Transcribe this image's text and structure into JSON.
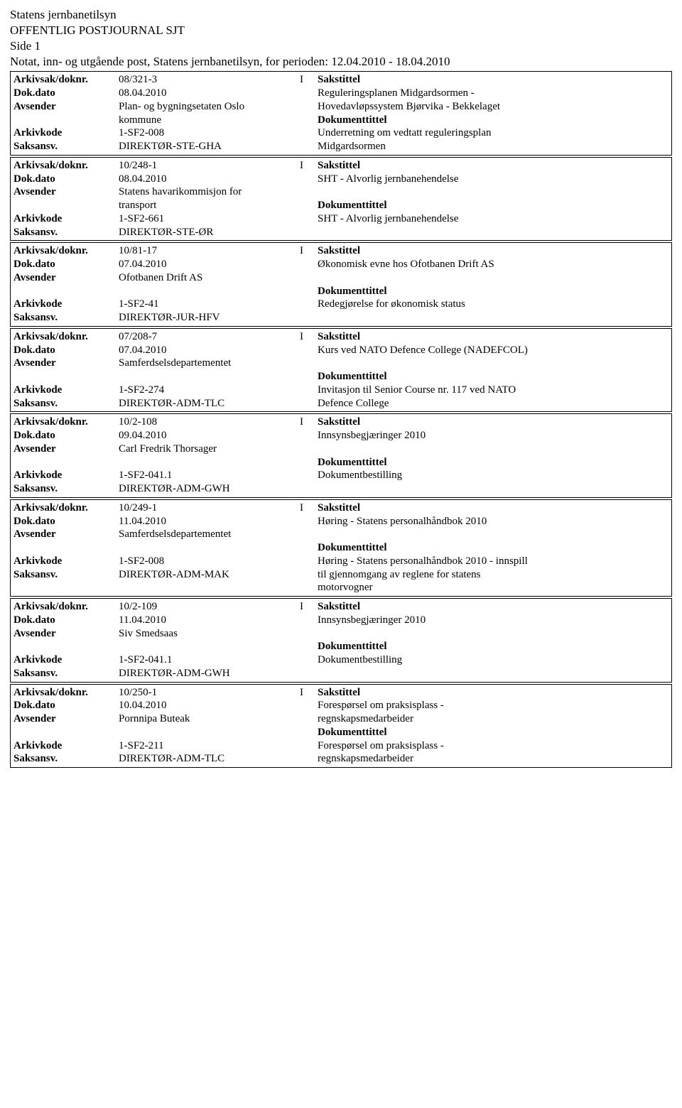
{
  "header": {
    "org": "Statens jernbanetilsyn",
    "journal": "OFFENTLIG POSTJOURNAL SJT",
    "side": "Side 1",
    "period": "Notat, inn- og utgående post, Statens jernbanetilsyn, for perioden: 12.04.2010 - 18.04.2010"
  },
  "labels": {
    "arkivsak": "Arkivsak/doknr.",
    "dokdato": "Dok.dato",
    "avsender": "Avsender",
    "arkivkode": "Arkivkode",
    "saksansv": "Saksansv.",
    "sakstittel": "Sakstittel",
    "dokumenttittel": "Dokumenttittel"
  },
  "entries": [
    {
      "arkivsak": "08/321-3",
      "itype": "I",
      "dokdato": "08.04.2010",
      "avsender": "Plan- og bygningsetaten Oslo kommune",
      "arkivkode": "1-SF2-008",
      "saksansv": "DIREKTØR-STE-GHA",
      "sakstittel": "Reguleringsplanen Midgardsormen - Hovedavløpssystem Bjørvika - Bekkelaget",
      "doktittel": "Underretning om vedtatt reguleringsplan Midgardsormen"
    },
    {
      "arkivsak": "10/248-1",
      "itype": "I",
      "dokdato": "08.04.2010",
      "avsender": "Statens havarikommisjon for transport",
      "arkivkode": "1-SF2-661",
      "saksansv": "DIREKTØR-STE-ØR",
      "sakstittel": "SHT - Alvorlig jernbanehendelse",
      "doktittel": "SHT - Alvorlig jernbanehendelse"
    },
    {
      "arkivsak": "10/81-17",
      "itype": "I",
      "dokdato": "07.04.2010",
      "avsender": "Ofotbanen Drift AS",
      "arkivkode": "1-SF2-41",
      "saksansv": "DIREKTØR-JUR-HFV",
      "sakstittel": "Økonomisk evne hos Ofotbanen Drift AS",
      "doktittel": "Redegjørelse for økonomisk status"
    },
    {
      "arkivsak": "07/208-7",
      "itype": "I",
      "dokdato": "07.04.2010",
      "avsender": "Samferdselsdepartementet",
      "arkivkode": "1-SF2-274",
      "saksansv": "DIREKTØR-ADM-TLC",
      "sakstittel": "Kurs ved NATO Defence College (NADEFCOL)",
      "doktittel": "Invitasjon til Senior Course nr. 117 ved NATO Defence College"
    },
    {
      "arkivsak": "10/2-108",
      "itype": "I",
      "dokdato": "09.04.2010",
      "avsender": "Carl Fredrik Thorsager",
      "arkivkode": "1-SF2-041.1",
      "saksansv": "DIREKTØR-ADM-GWH",
      "sakstittel": "Innsynsbegjæringer 2010",
      "doktittel": "Dokumentbestilling"
    },
    {
      "arkivsak": "10/249-1",
      "itype": "I",
      "dokdato": "11.04.2010",
      "avsender": "Samferdselsdepartementet",
      "arkivkode": "1-SF2-008",
      "saksansv": "DIREKTØR-ADM-MAK",
      "sakstittel": "Høring - Statens personalhåndbok 2010",
      "doktittel": "Høring - Statens personalhåndbok 2010 - innspill til gjennomgang av reglene for statens motorvogner"
    },
    {
      "arkivsak": "10/2-109",
      "itype": "I",
      "dokdato": "11.04.2010",
      "avsender": "Siv Smedsaas",
      "arkivkode": "1-SF2-041.1",
      "saksansv": "DIREKTØR-ADM-GWH",
      "sakstittel": "Innsynsbegjæringer 2010",
      "doktittel": "Dokumentbestilling"
    },
    {
      "arkivsak": "10/250-1",
      "itype": "I",
      "dokdato": "10.04.2010",
      "avsender": "Pornnipa Buteak",
      "arkivkode": "1-SF2-211",
      "saksansv": "DIREKTØR-ADM-TLC",
      "sakstittel": "Forespørsel om praksisplass - regnskapsmedarbeider",
      "doktittel": "Forespørsel om praksisplass - regnskapsmedarbeider"
    }
  ]
}
